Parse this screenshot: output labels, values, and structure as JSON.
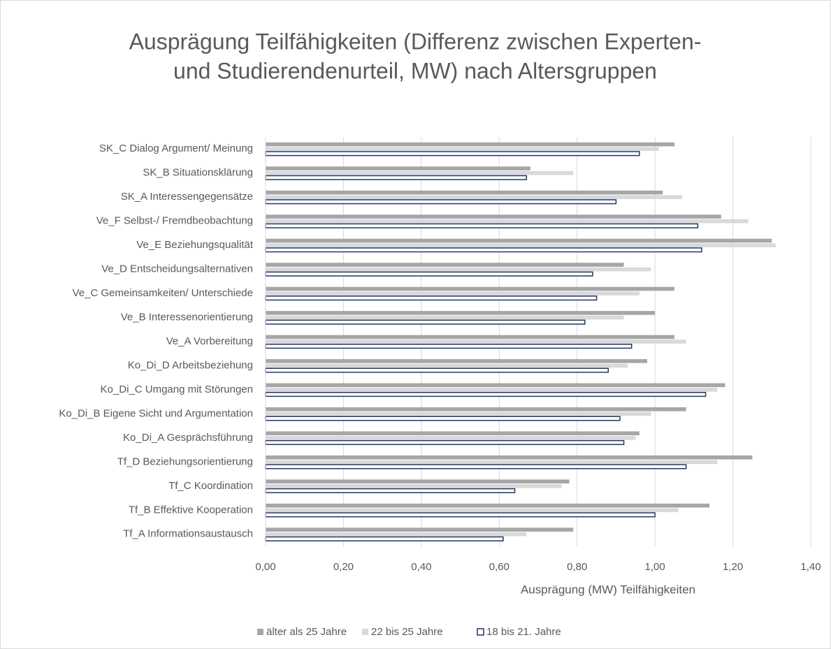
{
  "chart_data": {
    "type": "barh",
    "title": [
      "Ausprägung Teilfähigkeiten (Differenz zwischen Experten-",
      "und Studierendenurteil, MW) nach Altersgruppen"
    ],
    "xlabel": "Ausprägung (MW) Teilfähigkeiten",
    "categories": [
      "SK_C Dialog Argument/ Meinung",
      "SK_B Situationsklärung",
      "SK_A Interessengegensätze",
      "Ve_F Selbst-/ Fremdbeobachtung",
      "Ve_E Beziehungsqualität",
      "Ve_D Entscheidungsalternativen",
      "Ve_C Gemeinsamkeiten/ Unterschiede",
      "Ve_B Interessenorientierung",
      "Ve_A Vorbereitung",
      "Ko_Di_D Arbeitsbeziehung",
      "Ko_Di_C Umgang mit Störungen",
      "Ko_Di_B Eigene Sicht und Argumentation",
      "Ko_Di_A Gesprächsführung",
      "Tf_D Beziehungsorientierung",
      "Tf_C Koordination",
      "Tf_B Effektive Kooperation",
      "Tf_A Informationsaustausch"
    ],
    "series": [
      {
        "name": "älter als 25 Jahre",
        "color": "#a6a6a6",
        "fill": "#a6a6a6",
        "values": [
          1.05,
          0.68,
          1.02,
          1.17,
          1.3,
          0.92,
          1.05,
          1.0,
          1.05,
          0.98,
          1.18,
          1.08,
          0.96,
          1.25,
          0.78,
          1.14,
          0.79
        ]
      },
      {
        "name": "22 bis 25 Jahre",
        "color": "#d9d9d9",
        "fill": "#d9d9d9",
        "values": [
          1.01,
          0.79,
          1.07,
          1.24,
          1.31,
          0.99,
          0.96,
          0.92,
          1.08,
          0.93,
          1.16,
          0.99,
          0.95,
          1.16,
          0.76,
          1.06,
          0.67
        ]
      },
      {
        "name": "18 bis 21. Jahre",
        "color": "#203864",
        "fill": "#ffffff",
        "values": [
          0.96,
          0.67,
          0.9,
          1.11,
          1.12,
          0.84,
          0.85,
          0.82,
          0.94,
          0.88,
          1.13,
          0.91,
          0.92,
          1.08,
          0.64,
          1.0,
          0.61
        ]
      }
    ],
    "xlim": [
      0,
      1.4
    ],
    "xticks": [
      {
        "value": 0,
        "label": "0,00"
      },
      {
        "value": 0.2,
        "label": "0,20"
      },
      {
        "value": 0.4,
        "label": "0,40"
      },
      {
        "value": 0.6,
        "label": "0,60"
      },
      {
        "value": 0.8,
        "label": "0,80"
      },
      {
        "value": 1.0,
        "label": "1,00"
      },
      {
        "value": 1.2,
        "label": "1,20"
      },
      {
        "value": 1.4,
        "label": "1,40"
      }
    ],
    "grid": true,
    "legend": "bottom"
  }
}
